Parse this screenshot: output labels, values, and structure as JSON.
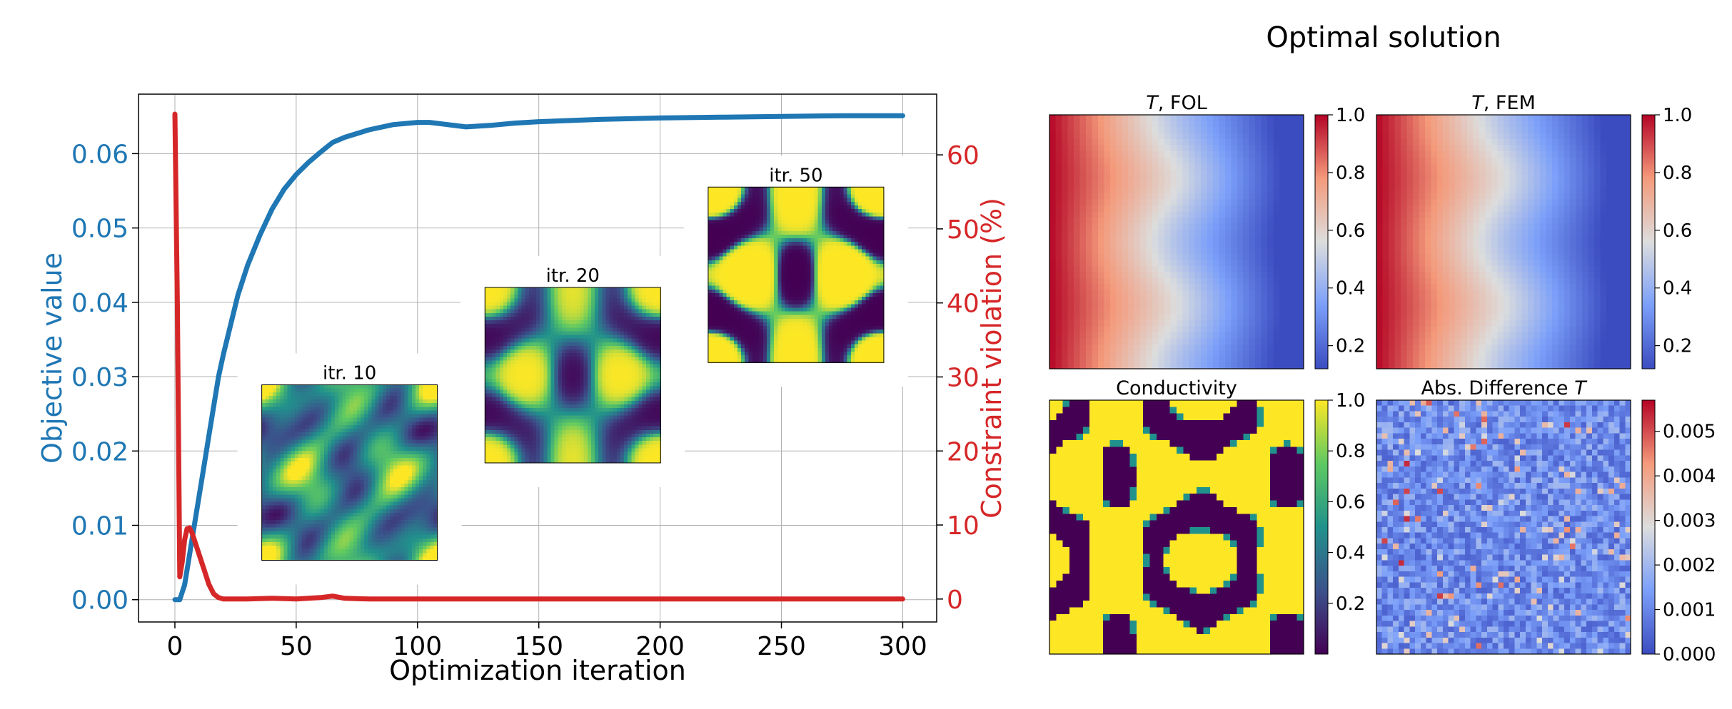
{
  "figure": {
    "right_title": "Optimal solution"
  },
  "colors": {
    "objective": "#1f77b4",
    "constraint": "#d62728",
    "grid": "#b0b0b0",
    "viridis_dark": "#440154",
    "viridis_teal": "#21918c",
    "viridis_yellow": "#fde725"
  },
  "chart_data": [
    {
      "type": "line",
      "title": "",
      "xlabel": "Optimization iteration",
      "ylabel": "Objective value",
      "y2label": "Constraint violation (%)",
      "xlim": [
        -15,
        314
      ],
      "ylim": [
        -0.003,
        0.068
      ],
      "y2lim": [
        -3.1,
        68.2
      ],
      "xticks": [
        0,
        50,
        100,
        150,
        200,
        250,
        300
      ],
      "yticks": [
        0.0,
        0.01,
        0.02,
        0.03,
        0.04,
        0.05,
        0.06
      ],
      "ytick_labels": [
        "0.00",
        "0.01",
        "0.02",
        "0.03",
        "0.04",
        "0.05",
        "0.06"
      ],
      "y2ticks": [
        0,
        10,
        20,
        30,
        40,
        50,
        60
      ],
      "grid": true,
      "series": [
        {
          "name": "Objective value",
          "axis": "left",
          "x": [
            0,
            2,
            4,
            6,
            8,
            10,
            12,
            14,
            16,
            18,
            20,
            23,
            26,
            30,
            35,
            40,
            45,
            50,
            55,
            60,
            65,
            70,
            80,
            90,
            100,
            105,
            110,
            120,
            130,
            140,
            150,
            175,
            200,
            225,
            250,
            275,
            300
          ],
          "values": [
            0.0,
            0.0,
            0.002,
            0.006,
            0.01,
            0.014,
            0.018,
            0.022,
            0.026,
            0.03,
            0.033,
            0.037,
            0.041,
            0.045,
            0.049,
            0.0525,
            0.0552,
            0.0572,
            0.0588,
            0.0602,
            0.0615,
            0.0622,
            0.0632,
            0.0639,
            0.0642,
            0.0642,
            0.064,
            0.0636,
            0.0638,
            0.0641,
            0.0643,
            0.0646,
            0.0648,
            0.0649,
            0.065,
            0.0651,
            0.0651
          ]
        },
        {
          "name": "Constraint violation (%)",
          "axis": "right",
          "x": [
            0,
            1,
            2,
            3,
            4,
            5,
            6,
            7,
            8,
            10,
            12,
            14,
            16,
            18,
            20,
            22,
            25,
            30,
            40,
            50,
            60,
            65,
            70,
            80,
            100,
            150,
            200,
            250,
            300
          ],
          "values": [
            65.5,
            40,
            3,
            5,
            8,
            9.5,
            9.6,
            9,
            8,
            6,
            4,
            2,
            0.7,
            0.2,
            0.0,
            0.0,
            0.0,
            0.0,
            0.1,
            0.0,
            0.2,
            0.4,
            0.1,
            0.0,
            0.0,
            0.0,
            0.0,
            0.0,
            0.0
          ]
        }
      ],
      "insets": [
        {
          "label": "itr. 10",
          "pattern": "smooth",
          "x_center": 72,
          "y_center": 0.0171
        },
        {
          "label": "itr. 20",
          "pattern": "medium",
          "x_center": 164,
          "y_center": 0.0302
        },
        {
          "label": "itr. 50",
          "pattern": "sharp",
          "x_center": 256,
          "y_center": 0.0437
        }
      ]
    },
    {
      "type": "heatmap",
      "title": "T, FOL",
      "title_var": "T",
      "title_rest": ", FOL",
      "colormap": "coolwarm",
      "colorbar_range": [
        0.12,
        1.0
      ],
      "colorbar_ticks": [
        0.2,
        0.4,
        0.6,
        0.8,
        1.0
      ],
      "colorbar_labels": [
        "0.2",
        "0.4",
        "0.6",
        "0.8",
        "1.0"
      ]
    },
    {
      "type": "heatmap",
      "title": "T, FEM",
      "title_var": "T",
      "title_rest": ", FEM",
      "colormap": "coolwarm",
      "colorbar_range": [
        0.12,
        1.0
      ],
      "colorbar_ticks": [
        0.2,
        0.4,
        0.6,
        0.8,
        1.0
      ],
      "colorbar_labels": [
        "0.2",
        "0.4",
        "0.6",
        "0.8",
        "1.0"
      ]
    },
    {
      "type": "heatmap",
      "title": "Conductivity",
      "colormap": "viridis",
      "colorbar_range": [
        0.0,
        1.0
      ],
      "colorbar_ticks": [
        0.2,
        0.4,
        0.6,
        0.8,
        1.0
      ],
      "colorbar_labels": [
        "0.2",
        "0.4",
        "0.6",
        "0.8",
        "1.0"
      ]
    },
    {
      "type": "heatmap",
      "title": "Abs. Difference T",
      "title_rest": "Abs. Difference ",
      "title_var": "T",
      "colormap": "coolwarm",
      "colorbar_range": [
        0.0,
        0.0057
      ],
      "colorbar_ticks": [
        0.0,
        0.001,
        0.002,
        0.003,
        0.004,
        0.005
      ],
      "colorbar_labels": [
        "0.000",
        "0.001",
        "0.002",
        "0.003",
        "0.004",
        "0.005"
      ]
    }
  ]
}
